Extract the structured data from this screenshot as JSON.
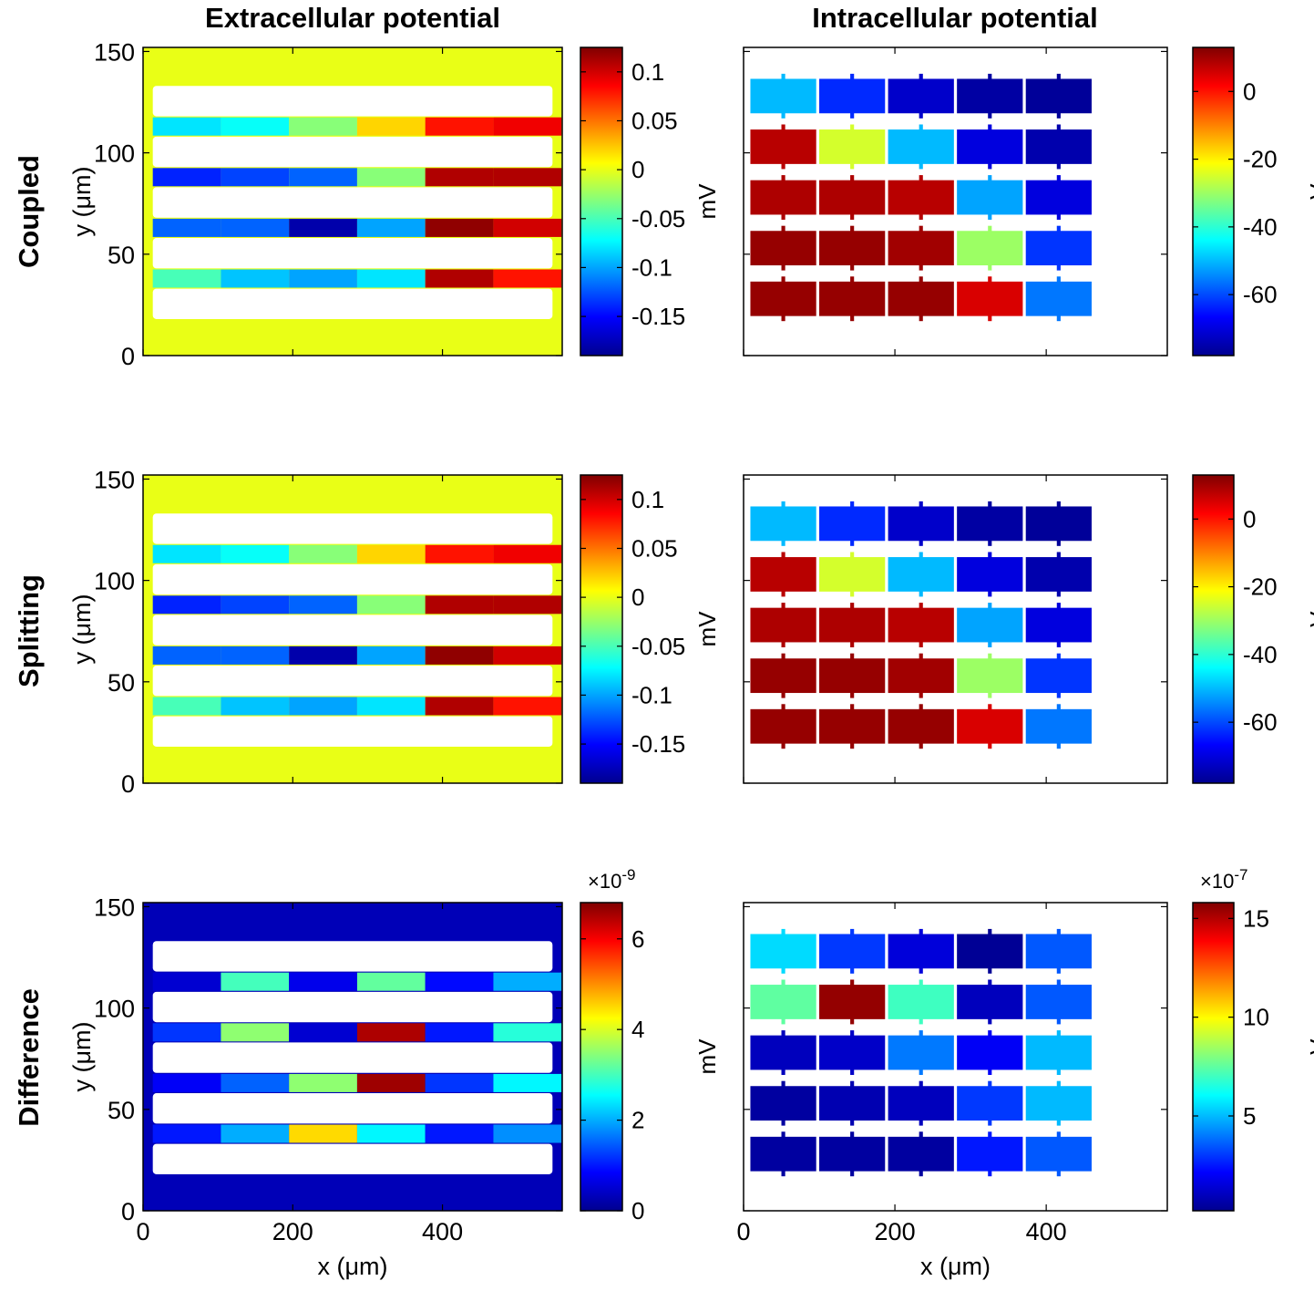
{
  "figure": {
    "column_titles": [
      "Extracellular potential",
      "Intracellular potential"
    ],
    "row_labels": [
      "Coupled",
      "Splitting",
      "Difference"
    ],
    "x_axis_label": "x (μm)",
    "y_axis_label": "y (μm)",
    "colorbar_unit": "mV"
  },
  "chart_data": [
    {
      "type": "heatmap",
      "id": "coupled-extracellular",
      "title": "Extracellular potential",
      "row": "Coupled",
      "xlabel": "",
      "ylabel": "y (μm)",
      "xlim": [
        0,
        560
      ],
      "ylim": [
        0,
        152
      ],
      "xticks": [
        0,
        200,
        400
      ],
      "xticklabels": [],
      "yticks": [
        0,
        50,
        100,
        150
      ],
      "yticklabels": [
        "0",
        "50",
        "100",
        "150"
      ],
      "colorbar": {
        "range": [
          -0.19,
          0.125
        ],
        "ticks": [
          0.1,
          0.05,
          0,
          -0.05,
          -0.1,
          -0.15
        ],
        "ticklabels": [
          "0.1",
          "0.05",
          "0",
          "-0.05",
          "-0.1",
          "-0.15"
        ],
        "label": "mV",
        "exponent": ""
      },
      "background_value": 0.0,
      "gap_rows": [
        {
          "y": 113,
          "values": [
            -0.08,
            -0.07,
            -0.03,
            0.02,
            0.08,
            0.09
          ]
        },
        {
          "y": 88,
          "values": [
            -0.14,
            -0.13,
            -0.12,
            -0.03,
            0.11,
            0.11
          ]
        },
        {
          "y": 63,
          "values": [
            -0.12,
            -0.12,
            -0.18,
            -0.1,
            0.12,
            0.1
          ]
        },
        {
          "y": 38,
          "values": [
            -0.05,
            -0.09,
            -0.1,
            -0.08,
            0.11,
            0.08
          ]
        }
      ]
    },
    {
      "type": "heatmap",
      "id": "coupled-intracellular",
      "title": "Intracellular potential",
      "row": "Coupled",
      "xlabel": "",
      "ylabel": "",
      "xlim": [
        0,
        560
      ],
      "ylim": [
        0,
        152
      ],
      "xticks": [
        0,
        200,
        400
      ],
      "xticklabels": [],
      "yticks": [
        0,
        50,
        100,
        150
      ],
      "yticklabels": [],
      "colorbar": {
        "range": [
          -78,
          13
        ],
        "ticks": [
          0,
          -20,
          -40,
          -60
        ],
        "ticklabels": [
          "0",
          "-20",
          "-40",
          "-60"
        ],
        "label": "mV",
        "exponent": ""
      },
      "cell_values": [
        [
          -50,
          -63,
          -72,
          -76,
          -77
        ],
        [
          8,
          -25,
          -50,
          -70,
          -75
        ],
        [
          9,
          9,
          8,
          -52,
          -70
        ],
        [
          11,
          11,
          10,
          -30,
          -62
        ],
        [
          11,
          11,
          11,
          5,
          -56
        ]
      ]
    },
    {
      "type": "heatmap",
      "id": "splitting-extracellular",
      "title": "",
      "row": "Splitting",
      "xlabel": "",
      "ylabel": "y (μm)",
      "xlim": [
        0,
        560
      ],
      "ylim": [
        0,
        152
      ],
      "xticks": [
        0,
        200,
        400
      ],
      "xticklabels": [],
      "yticks": [
        0,
        50,
        100,
        150
      ],
      "yticklabels": [
        "0",
        "50",
        "100",
        "150"
      ],
      "colorbar": {
        "range": [
          -0.19,
          0.125
        ],
        "ticks": [
          0.1,
          0.05,
          0,
          -0.05,
          -0.1,
          -0.15
        ],
        "ticklabels": [
          "0.1",
          "0.05",
          "0",
          "-0.05",
          "-0.1",
          "-0.15"
        ],
        "label": "mV",
        "exponent": ""
      },
      "background_value": 0.0,
      "gap_rows": [
        {
          "y": 113,
          "values": [
            -0.08,
            -0.07,
            -0.03,
            0.02,
            0.08,
            0.09
          ]
        },
        {
          "y": 88,
          "values": [
            -0.14,
            -0.13,
            -0.12,
            -0.03,
            0.11,
            0.11
          ]
        },
        {
          "y": 63,
          "values": [
            -0.12,
            -0.12,
            -0.18,
            -0.1,
            0.12,
            0.1
          ]
        },
        {
          "y": 38,
          "values": [
            -0.05,
            -0.09,
            -0.1,
            -0.08,
            0.11,
            0.08
          ]
        }
      ]
    },
    {
      "type": "heatmap",
      "id": "splitting-intracellular",
      "title": "",
      "row": "Splitting",
      "xlabel": "",
      "ylabel": "",
      "xlim": [
        0,
        560
      ],
      "ylim": [
        0,
        152
      ],
      "xticks": [
        0,
        200,
        400
      ],
      "xticklabels": [],
      "yticks": [
        0,
        50,
        100,
        150
      ],
      "yticklabels": [],
      "colorbar": {
        "range": [
          -78,
          13
        ],
        "ticks": [
          0,
          -20,
          -40,
          -60
        ],
        "ticklabels": [
          "0",
          "-20",
          "-40",
          "-60"
        ],
        "label": "mV",
        "exponent": ""
      },
      "cell_values": [
        [
          -50,
          -63,
          -72,
          -76,
          -77
        ],
        [
          8,
          -25,
          -50,
          -70,
          -75
        ],
        [
          9,
          9,
          8,
          -52,
          -70
        ],
        [
          11,
          11,
          10,
          -30,
          -62
        ],
        [
          11,
          11,
          11,
          5,
          -56
        ]
      ]
    },
    {
      "type": "heatmap",
      "id": "difference-extracellular",
      "title": "",
      "row": "Difference",
      "xlabel": "x (μm)",
      "ylabel": "y (μm)",
      "xlim": [
        0,
        560
      ],
      "ylim": [
        0,
        152
      ],
      "xticks": [
        0,
        200,
        400
      ],
      "xticklabels": [
        "0",
        "200",
        "400"
      ],
      "yticks": [
        0,
        50,
        100,
        150
      ],
      "yticklabels": [
        "0",
        "50",
        "100",
        "150"
      ],
      "colorbar": {
        "range": [
          0,
          6.8
        ],
        "ticks": [
          6,
          4,
          2,
          0
        ],
        "ticklabels": [
          "6",
          "4",
          "2",
          "0"
        ],
        "label": "mV",
        "exponent": "×10-9"
      },
      "background_value": 0.3,
      "gap_rows": [
        {
          "y": 113,
          "values": [
            0.5,
            3.0,
            0.7,
            3.2,
            0.9,
            2.0
          ]
        },
        {
          "y": 88,
          "values": [
            1.2,
            3.5,
            0.5,
            6.5,
            1.0,
            2.8
          ]
        },
        {
          "y": 63,
          "values": [
            0.8,
            1.5,
            3.5,
            6.6,
            1.2,
            2.5
          ]
        },
        {
          "y": 38,
          "values": [
            1.0,
            2.0,
            4.5,
            2.5,
            1.0,
            1.8
          ]
        }
      ]
    },
    {
      "type": "heatmap",
      "id": "difference-intracellular",
      "title": "",
      "row": "Difference",
      "xlabel": "x (μm)",
      "ylabel": "",
      "xlim": [
        0,
        560
      ],
      "ylim": [
        0,
        152
      ],
      "xticks": [
        0,
        200,
        400
      ],
      "xticklabels": [
        "0",
        "200",
        "400"
      ],
      "yticks": [
        0,
        50,
        100,
        150
      ],
      "yticklabels": [],
      "colorbar": {
        "range": [
          0.2,
          15.8
        ],
        "ticks": [
          15,
          10,
          5
        ],
        "ticklabels": [
          "15",
          "10",
          "5"
        ],
        "label": "mV",
        "exponent": "×10-7"
      },
      "cell_values": [
        [
          5.5,
          3.0,
          1.5,
          0.3,
          3.5
        ],
        [
          7.5,
          15.5,
          7.0,
          1.0,
          3.5
        ],
        [
          1.0,
          1.2,
          4.0,
          2.0,
          5.0
        ],
        [
          0.5,
          0.8,
          1.0,
          3.0,
          5.0
        ],
        [
          0.5,
          0.5,
          0.5,
          2.5,
          3.5
        ]
      ]
    }
  ]
}
